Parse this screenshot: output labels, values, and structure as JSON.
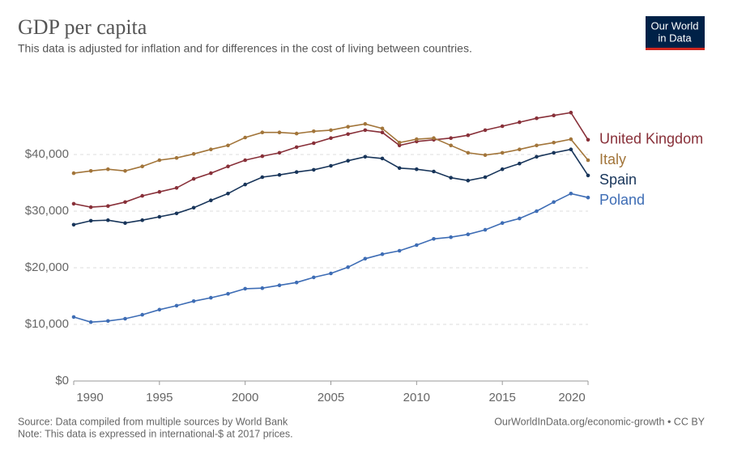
{
  "chart_data": {
    "type": "line",
    "title": "GDP per capita",
    "subtitle": "This data is adjusted for inflation and for differences in the cost of living between countries.",
    "source": "Source: Data compiled from multiple sources by World Bank",
    "note": "Note: This data is expressed in international-$ at 2017 prices.",
    "credit": "OurWorldInData.org/economic-growth • CC BY",
    "logo": [
      "Our World",
      "in Data"
    ],
    "x": [
      1990,
      1991,
      1992,
      1993,
      1994,
      1995,
      1996,
      1997,
      1998,
      1999,
      2000,
      2001,
      2002,
      2003,
      2004,
      2005,
      2006,
      2007,
      2008,
      2009,
      2010,
      2011,
      2012,
      2013,
      2014,
      2015,
      2016,
      2017,
      2018,
      2019,
      2020
    ],
    "xlim": [
      1990,
      2020
    ],
    "xticks": [
      1990,
      1995,
      2000,
      2005,
      2010,
      2015,
      2020
    ],
    "ylim": [
      0,
      50000
    ],
    "yticks": [
      {
        "value": 0,
        "label": "$0"
      },
      {
        "value": 10000,
        "label": "$10,000"
      },
      {
        "value": 20000,
        "label": "$20,000"
      },
      {
        "value": 30000,
        "label": "$30,000"
      },
      {
        "value": 40000,
        "label": "$40,000"
      }
    ],
    "grid": true,
    "series": [
      {
        "name": "United Kingdom",
        "color": "#883039",
        "values": [
          31300,
          30700,
          30900,
          31600,
          32700,
          33400,
          34100,
          35700,
          36700,
          37900,
          39000,
          39700,
          40300,
          41300,
          42000,
          42900,
          43600,
          44300,
          43900,
          41600,
          42300,
          42600,
          42900,
          43400,
          44300,
          45000,
          45700,
          46400,
          46900,
          47400,
          42600
        ]
      },
      {
        "name": "Italy",
        "color": "#a2753a",
        "values": [
          36700,
          37100,
          37400,
          37100,
          37900,
          39000,
          39400,
          40100,
          40900,
          41600,
          43000,
          43900,
          43900,
          43700,
          44100,
          44300,
          44900,
          45400,
          44600,
          42100,
          42700,
          42900,
          41600,
          40300,
          39900,
          40300,
          40900,
          41600,
          42100,
          42700,
          39000
        ]
      },
      {
        "name": "Spain",
        "color": "#18355a",
        "values": [
          27600,
          28300,
          28400,
          27900,
          28400,
          29000,
          29600,
          30600,
          31900,
          33100,
          34700,
          36000,
          36400,
          36900,
          37300,
          38000,
          38900,
          39600,
          39300,
          37600,
          37400,
          37000,
          35900,
          35400,
          36000,
          37400,
          38400,
          39600,
          40300,
          40900,
          36300
        ]
      },
      {
        "name": "Poland",
        "color": "#3e6db5",
        "values": [
          11300,
          10400,
          10600,
          11000,
          11700,
          12600,
          13300,
          14100,
          14700,
          15400,
          16300,
          16400,
          16900,
          17400,
          18300,
          19000,
          20100,
          21600,
          22400,
          23000,
          24000,
          25100,
          25400,
          25900,
          26700,
          27900,
          28700,
          30000,
          31600,
          33100,
          32400
        ]
      }
    ]
  }
}
